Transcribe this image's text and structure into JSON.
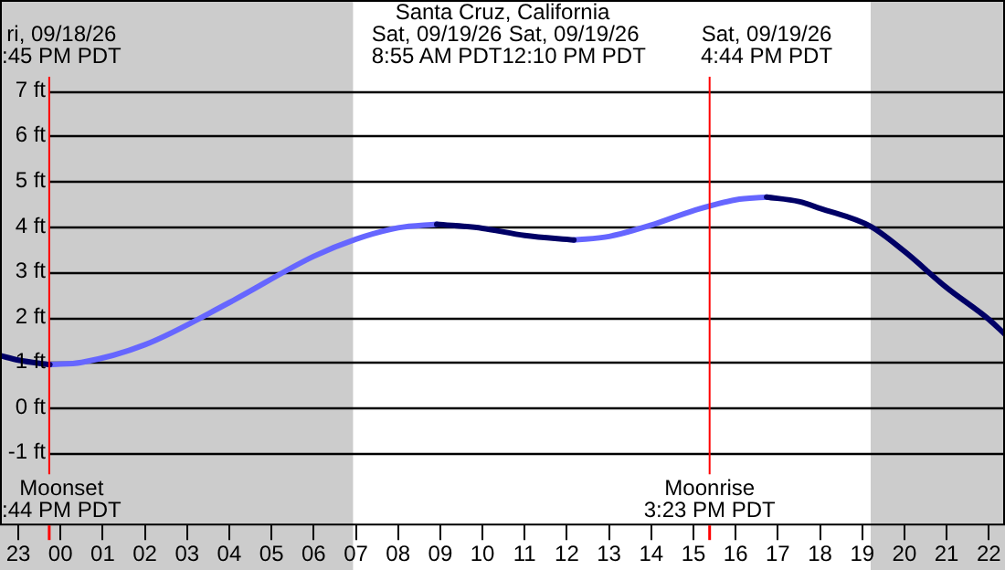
{
  "chart_data": {
    "type": "line",
    "title": "Santa Cruz, California",
    "x": [
      "--09-18T22:34",
      "--09-18T23:00",
      "--09-18T23:45",
      "--09-19T00:30",
      "--09-19T02:00",
      "--09-19T04:00",
      "--09-19T06:00",
      "--09-19T07:00",
      "--09-19T08:00",
      "--09-19T08:55",
      "--09-19T10:00",
      "--09-19T11:00",
      "--09-19T12:10",
      "--09-19T13:00",
      "--09-19T14:00",
      "--09-19T15:00",
      "--09-19T16:00",
      "--09-19T16:44",
      "--09-19T17:30",
      "--09-19T18:00",
      "--09-19T19:12",
      "--09-19T20:00",
      "--09-19T21:00",
      "--09-19T22:00",
      "--09-19T22:23"
    ],
    "series": [
      {
        "color": "#000066",
        "values": [
          1.15,
          1.05,
          0.95,
          null,
          null,
          null,
          null,
          null,
          null,
          4.05,
          3.96,
          3.8,
          3.7,
          null,
          null,
          null,
          null,
          4.65,
          4.55,
          4.4,
          4.0,
          3.45,
          2.65,
          1.95,
          1.62
        ]
      },
      {
        "color": "#6666ff",
        "values": [
          null,
          null,
          0.95,
          1.0,
          1.39,
          2.32,
          3.34,
          3.72,
          3.97,
          4.05,
          null,
          null,
          3.7,
          3.78,
          4.03,
          4.35,
          4.59,
          4.65,
          null,
          null,
          null,
          null,
          null,
          null,
          null
        ]
      }
    ],
    "xlim": [
      "--09-18T22:34",
      "--09-19T22:23"
    ],
    "xticks": [
      {
        "value": "--09-18T23:00",
        "label": "23"
      },
      {
        "value": "--09-19T00:00",
        "label": "00"
      },
      {
        "value": "--09-19T01:00",
        "label": "01"
      },
      {
        "value": "--09-19T02:00",
        "label": "02"
      },
      {
        "value": "--09-19T03:00",
        "label": "03"
      },
      {
        "value": "--09-19T04:00",
        "label": "04"
      },
      {
        "value": "--09-19T05:00",
        "label": "05"
      },
      {
        "value": "--09-19T06:00",
        "label": "06"
      },
      {
        "value": "--09-19T07:00",
        "label": "07"
      },
      {
        "value": "--09-19T08:00",
        "label": "08"
      },
      {
        "value": "--09-19T09:00",
        "label": "09"
      },
      {
        "value": "--09-19T10:00",
        "label": "10"
      },
      {
        "value": "--09-19T11:00",
        "label": "11"
      },
      {
        "value": "--09-19T12:00",
        "label": "12"
      },
      {
        "value": "--09-19T13:00",
        "label": "13"
      },
      {
        "value": "--09-19T14:00",
        "label": "14"
      },
      {
        "value": "--09-19T15:00",
        "label": "15"
      },
      {
        "value": "--09-19T16:00",
        "label": "16"
      },
      {
        "value": "--09-19T17:00",
        "label": "17"
      },
      {
        "value": "--09-19T18:00",
        "label": "18"
      },
      {
        "value": "--09-19T19:00",
        "label": "19"
      },
      {
        "value": "--09-19T20:00",
        "label": "20"
      },
      {
        "value": "--09-19T21:00",
        "label": "21"
      },
      {
        "value": "--09-19T22:00",
        "label": "22"
      }
    ],
    "ylim": [
      -2.6,
      9.0
    ],
    "yticks": [
      {
        "value": -1,
        "label": "-1 ft"
      },
      {
        "value": 0,
        "label": "0 ft"
      },
      {
        "value": 1,
        "label": "1 ft"
      },
      {
        "value": 2,
        "label": "2 ft"
      },
      {
        "value": 3,
        "label": "3 ft"
      },
      {
        "value": 4,
        "label": "4 ft"
      },
      {
        "value": 5,
        "label": "5 ft"
      },
      {
        "value": 6,
        "label": "6 ft"
      },
      {
        "value": 7,
        "label": "7 ft"
      }
    ],
    "grid": "y",
    "legend": false,
    "marker": "none",
    "line_style": "solid",
    "annotations": [
      "ri, 09/18/26\n:45 PM PDT",
      "Sat, 09/19/26\n8:55 AM PDT",
      "Sat, 09/19/26\n12:10 PM PDT",
      "Sat, 09/19/26\n4:44 PM PDT"
    ],
    "bands": [
      {
        "axis": "x",
        "from": "--09-18T22:34",
        "to": "--09-19T06:56",
        "color": "#cccccc"
      },
      {
        "axis": "x",
        "from": "--09-19T19:12",
        "to": "--09-19T22:23",
        "color": "#cccccc"
      }
    ],
    "ref_lines": [
      {
        "axis": "x",
        "value": "--09-18T23:44",
        "label": "Moonset\n:44 PM PDT",
        "color": "#ff0000"
      },
      {
        "axis": "x",
        "value": "--09-19T15:23",
        "label": "Moonrise\n3:23 PM PDT",
        "color": "#ff0000"
      }
    ]
  }
}
